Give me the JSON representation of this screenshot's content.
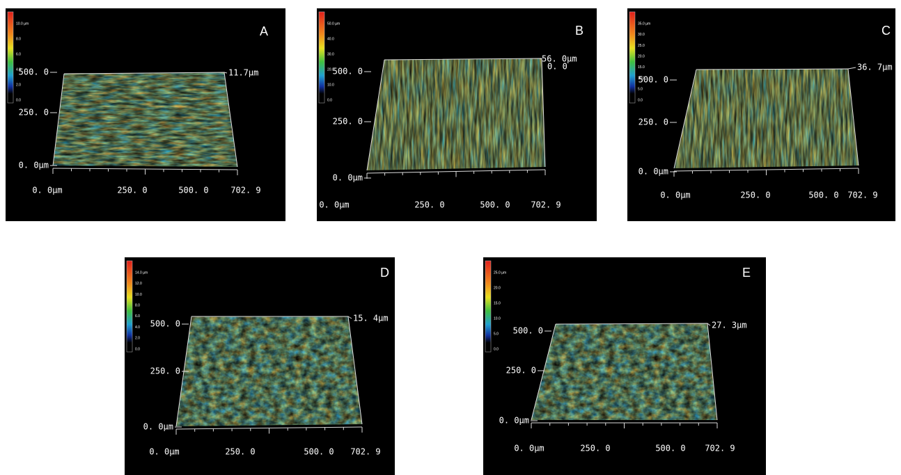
{
  "panels": [
    {
      "letter": "A",
      "colorbar": [
        "10.0 µm",
        "8.0",
        "6.0",
        "4.0",
        "2.0",
        "0.0"
      ],
      "y_axis": [
        "500. 0",
        "250. 0",
        "0. 0µm"
      ],
      "x_axis": [
        "0. 0µm",
        "250. 0",
        "500. 0",
        "702. 9"
      ],
      "z_max": [
        "11.7µm"
      ]
    },
    {
      "letter": "B",
      "colorbar": [
        "50.0 µm",
        "40.0",
        "30.0",
        "20.0",
        "10.0",
        "0.0"
      ],
      "y_axis": [
        "500. 0",
        "250. 0",
        "0. 0µm"
      ],
      "x_axis": [
        "0. 0µm",
        "250. 0",
        "500. 0",
        "702. 9"
      ],
      "z_max": [
        "56. 0µm",
        "0. 0"
      ]
    },
    {
      "letter": "C",
      "colorbar": [
        "35.0 µm",
        "30.0",
        "25.0",
        "20.0",
        "15.0",
        "10.0",
        "5.0",
        "0.0"
      ],
      "y_axis": [
        "500. 0",
        "250. 0",
        "0. 0µm"
      ],
      "x_axis": [
        "0. 0µm",
        "250. 0",
        "500. 0",
        "702. 9"
      ],
      "z_max": [
        "36. 7µm"
      ]
    },
    {
      "letter": "D",
      "colorbar": [
        "14.0 µm",
        "12.0",
        "10.0",
        "8.0",
        "6.0",
        "4.0",
        "2.0",
        "0.0"
      ],
      "y_axis": [
        "500. 0",
        "250. 0",
        "0. 0µm"
      ],
      "x_axis": [
        "0. 0µm",
        "250. 0",
        "500. 0",
        "702. 9"
      ],
      "z_max": [
        "15. 4µm"
      ]
    },
    {
      "letter": "E",
      "colorbar": [
        "25.0 µm",
        "20.0",
        "15.0",
        "10.0",
        "5.0",
        "0.0"
      ],
      "y_axis": [
        "500. 0",
        "250. 0",
        "0. 0µm"
      ],
      "x_axis": [
        "0. 0µm",
        "250. 0",
        "500. 0",
        "702. 9"
      ],
      "z_max": [
        "27. 3µm"
      ]
    }
  ]
}
